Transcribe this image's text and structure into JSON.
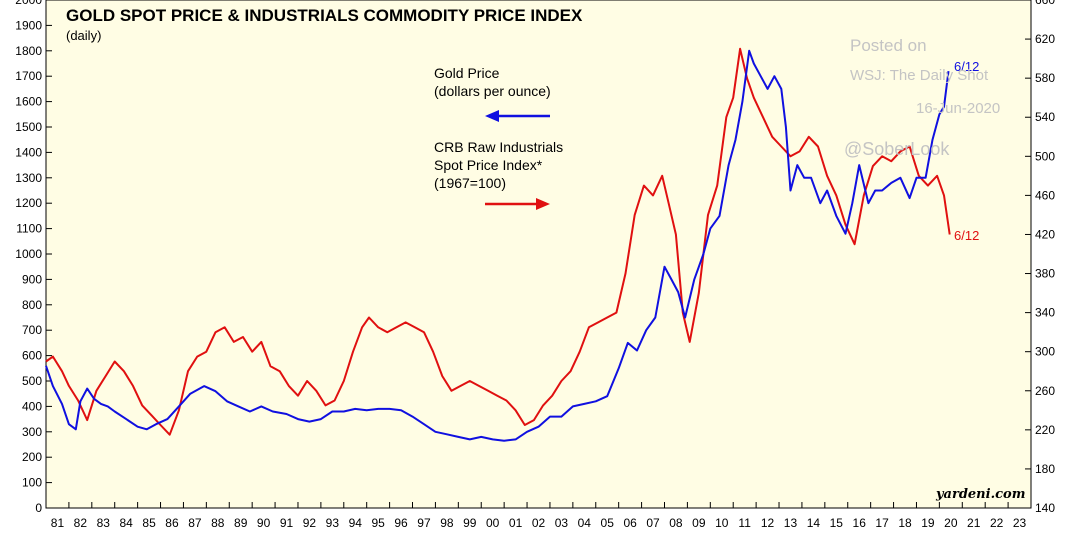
{
  "chart_data": {
    "type": "line",
    "title": "GOLD SPOT PRICE & INDUSTRIALS COMMODITY PRICE INDEX",
    "subtitle": "(daily)",
    "x_tick_labels": [
      "81",
      "82",
      "83",
      "84",
      "85",
      "86",
      "87",
      "88",
      "89",
      "90",
      "91",
      "92",
      "93",
      "94",
      "95",
      "96",
      "97",
      "98",
      "99",
      "00",
      "01",
      "02",
      "03",
      "04",
      "05",
      "06",
      "07",
      "08",
      "09",
      "10",
      "11",
      "12",
      "13",
      "14",
      "15",
      "16",
      "17",
      "18",
      "19",
      "20",
      "21",
      "22",
      "23"
    ],
    "xlim": [
      1981,
      2024
    ],
    "y_left": {
      "min": 0,
      "max": 2000,
      "step": 100
    },
    "y_right": {
      "min": 140,
      "max": 660,
      "step": 40
    },
    "grid": false,
    "background": "#fffde4",
    "series": [
      {
        "name": "Gold Price (dollars per ounce)",
        "axis": "left",
        "color": "#1010e0",
        "x": [
          1981.0,
          1981.3,
          1981.7,
          1982.0,
          1982.3,
          1982.5,
          1982.8,
          1983.1,
          1983.4,
          1983.7,
          1984.0,
          1984.5,
          1985.0,
          1985.4,
          1985.8,
          1986.3,
          1986.8,
          1987.3,
          1987.9,
          1988.4,
          1988.9,
          1989.4,
          1989.9,
          1990.4,
          1990.9,
          1991.5,
          1992.0,
          1992.5,
          1993.0,
          1993.5,
          1994.0,
          1994.5,
          1995.0,
          1995.5,
          1996.0,
          1996.5,
          1997.0,
          1997.5,
          1998.0,
          1998.5,
          1999.0,
          1999.5,
          2000.0,
          2000.5,
          2001.0,
          2001.5,
          2002.0,
          2002.5,
          2003.0,
          2003.5,
          2004.0,
          2004.5,
          2005.0,
          2005.5,
          2006.0,
          2006.4,
          2006.8,
          2007.2,
          2007.6,
          2008.0,
          2008.3,
          2008.6,
          2008.9,
          2009.3,
          2009.7,
          2010.0,
          2010.4,
          2010.8,
          2011.1,
          2011.4,
          2011.7,
          2011.9,
          2012.2,
          2012.5,
          2012.8,
          2013.1,
          2013.3,
          2013.5,
          2013.8,
          2014.1,
          2014.4,
          2014.8,
          2015.1,
          2015.5,
          2015.9,
          2016.2,
          2016.5,
          2016.9,
          2017.2,
          2017.5,
          2017.9,
          2018.3,
          2018.7,
          2019.0,
          2019.4,
          2019.7,
          2020.0,
          2020.2,
          2020.4
        ],
        "values": [
          560,
          480,
          410,
          330,
          310,
          420,
          470,
          430,
          410,
          400,
          380,
          350,
          320,
          310,
          330,
          350,
          400,
          450,
          480,
          460,
          420,
          400,
          380,
          400,
          380,
          370,
          350,
          340,
          350,
          380,
          380,
          390,
          385,
          390,
          390,
          385,
          360,
          330,
          300,
          290,
          280,
          270,
          280,
          270,
          265,
          270,
          300,
          320,
          360,
          360,
          400,
          410,
          420,
          440,
          550,
          650,
          620,
          700,
          750,
          950,
          900,
          850,
          750,
          900,
          1000,
          1100,
          1150,
          1350,
          1450,
          1600,
          1800,
          1750,
          1700,
          1650,
          1700,
          1650,
          1500,
          1250,
          1350,
          1300,
          1300,
          1200,
          1250,
          1150,
          1080,
          1200,
          1350,
          1200,
          1250,
          1250,
          1280,
          1300,
          1220,
          1300,
          1300,
          1450,
          1550,
          1580,
          1720
        ]
      },
      {
        "name": "CRB Raw Industrials Spot Price Index* (1967=100)",
        "axis": "right",
        "color": "#e01010",
        "x": [
          1981.0,
          1981.3,
          1981.7,
          1982.0,
          1982.4,
          1982.8,
          1983.2,
          1983.6,
          1984.0,
          1984.4,
          1984.8,
          1985.2,
          1985.6,
          1986.0,
          1986.4,
          1986.8,
          1987.2,
          1987.6,
          1988.0,
          1988.4,
          1988.8,
          1989.2,
          1989.6,
          1990.0,
          1990.4,
          1990.8,
          1991.2,
          1991.6,
          1992.0,
          1992.4,
          1992.8,
          1993.2,
          1993.6,
          1994.0,
          1994.4,
          1994.8,
          1995.1,
          1995.5,
          1995.9,
          1996.3,
          1996.7,
          1997.1,
          1997.5,
          1997.9,
          1998.3,
          1998.7,
          1999.1,
          1999.5,
          1999.9,
          2000.3,
          2000.7,
          2001.1,
          2001.5,
          2001.9,
          2002.3,
          2002.7,
          2003.1,
          2003.5,
          2003.9,
          2004.3,
          2004.7,
          2005.1,
          2005.5,
          2005.9,
          2006.3,
          2006.7,
          2007.1,
          2007.5,
          2007.9,
          2008.2,
          2008.5,
          2008.8,
          2009.1,
          2009.5,
          2009.9,
          2010.3,
          2010.7,
          2011.0,
          2011.3,
          2011.6,
          2011.9,
          2012.3,
          2012.7,
          2013.1,
          2013.5,
          2013.9,
          2014.3,
          2014.7,
          2015.1,
          2015.5,
          2015.9,
          2016.3,
          2016.7,
          2017.1,
          2017.5,
          2017.9,
          2018.3,
          2018.7,
          2019.1,
          2019.5,
          2019.9,
          2020.2,
          2020.45
        ],
        "values": [
          290,
          295,
          280,
          265,
          250,
          230,
          260,
          275,
          290,
          280,
          265,
          245,
          235,
          225,
          215,
          240,
          280,
          295,
          300,
          320,
          325,
          310,
          315,
          300,
          310,
          285,
          280,
          265,
          255,
          270,
          260,
          245,
          250,
          270,
          300,
          325,
          335,
          325,
          320,
          325,
          330,
          325,
          320,
          300,
          275,
          260,
          265,
          270,
          265,
          260,
          255,
          250,
          240,
          225,
          230,
          245,
          255,
          270,
          280,
          300,
          325,
          330,
          335,
          340,
          380,
          440,
          470,
          460,
          480,
          450,
          420,
          340,
          310,
          360,
          440,
          470,
          540,
          560,
          610,
          580,
          560,
          540,
          520,
          510,
          500,
          505,
          520,
          510,
          480,
          460,
          430,
          410,
          460,
          490,
          500,
          495,
          505,
          510,
          480,
          470,
          480,
          460,
          420
        ]
      }
    ],
    "legend": {
      "gold_line1": "Gold Price",
      "gold_line2": "(dollars per ounce)",
      "crb_line1": "CRB Raw Industrials",
      "crb_line2": "Spot Price Index*",
      "crb_line3": "(1967=100)"
    },
    "annotations": {
      "gold_end": "6/12",
      "crb_end": "6/12"
    },
    "watermark": {
      "line1": "Posted on",
      "line2": "WSJ: The Daily Shot",
      "line3": "16-Jun-2020",
      "handle": "@SoberLook"
    },
    "source": "yardeni.com"
  }
}
